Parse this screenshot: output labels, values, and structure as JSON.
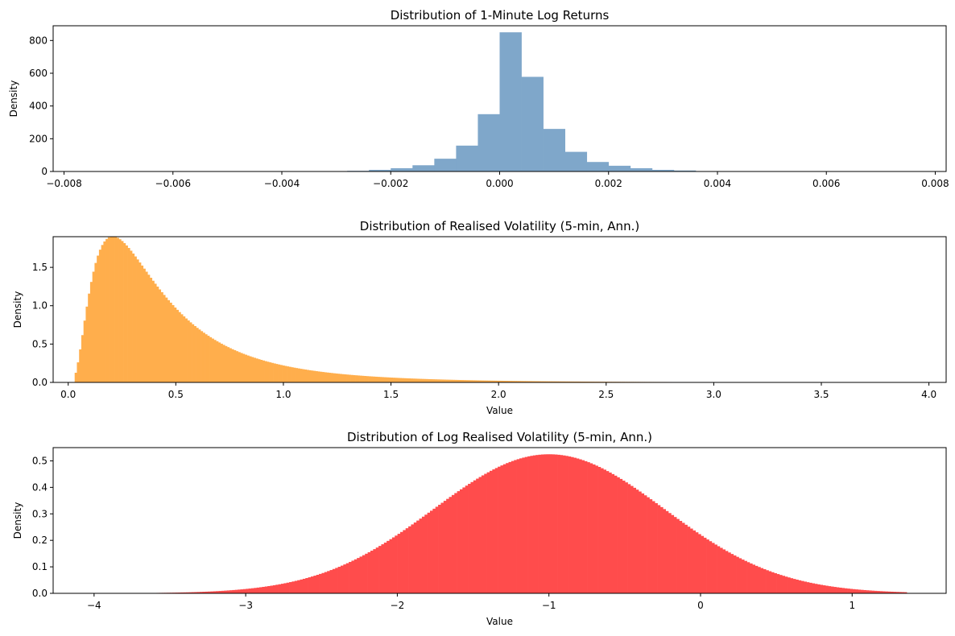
{
  "chart_data": [
    {
      "type": "bar",
      "title": "Distribution of 1-Minute Log Returns",
      "xlabel": "",
      "ylabel": "Density",
      "xlim": [
        -0.0082,
        0.0082
      ],
      "ylim": [
        0,
        890
      ],
      "color": "#7fa7ca",
      "xticks": [
        -0.008,
        -0.006,
        -0.004,
        -0.002,
        0.0,
        0.002,
        0.004,
        0.006,
        0.008
      ],
      "xtick_labels": [
        "−0.008",
        "−0.006",
        "−0.004",
        "−0.002",
        "0.000",
        "0.002",
        "0.004",
        "0.006",
        "0.008"
      ],
      "yticks": [
        0,
        200,
        400,
        600,
        800
      ],
      "ytick_labels": [
        "0",
        "200",
        "400",
        "600",
        "800"
      ],
      "bin_width": 0.0004,
      "bins": [
        [
          -0.0036,
          1
        ],
        [
          -0.0032,
          2
        ],
        [
          -0.0028,
          4
        ],
        [
          -0.0024,
          10
        ],
        [
          -0.002,
          20
        ],
        [
          -0.0016,
          38
        ],
        [
          -0.0012,
          78
        ],
        [
          -0.0008,
          158
        ],
        [
          -0.0004,
          350
        ],
        [
          0.0,
          850
        ],
        [
          0.0004,
          578
        ],
        [
          0.0008,
          260
        ],
        [
          0.0012,
          120
        ],
        [
          0.0016,
          58
        ],
        [
          0.002,
          35
        ],
        [
          0.0024,
          20
        ],
        [
          0.0028,
          10
        ],
        [
          0.0032,
          6
        ],
        [
          0.0036,
          2
        ]
      ]
    },
    {
      "type": "bar",
      "title": "Distribution of Realised Volatility (5-min, Ann.)",
      "xlabel": "Value",
      "ylabel": "Density",
      "xlim": [
        -0.07,
        4.08
      ],
      "ylim": [
        0,
        1.9
      ],
      "color": "#ffae4c",
      "xticks": [
        0,
        0.5,
        1.0,
        1.5,
        2.0,
        2.5,
        3.0,
        3.5,
        4.0
      ],
      "xtick_labels": [
        "0.0",
        "0.5",
        "1.0",
        "1.5",
        "2.0",
        "2.5",
        "3.0",
        "3.5",
        "4.0"
      ],
      "yticks": [
        0,
        0.5,
        1.0,
        1.5
      ],
      "ytick_labels": [
        "0.0",
        "0.5",
        "1.0",
        "1.5"
      ],
      "distribution": {
        "kind": "lognormal",
        "mu": -1.0,
        "sigma": 0.76
      },
      "x_range": [
        0.03,
        3.52
      ],
      "num_bins": 340
    },
    {
      "type": "bar",
      "title": "Distribution of Log Realised Volatility (5-min, Ann.)",
      "xlabel": "Value",
      "ylabel": "Density",
      "xlim": [
        -4.27,
        1.62
      ],
      "ylim": [
        0,
        0.55
      ],
      "color": "#ff4c4c",
      "xticks": [
        -4,
        -3,
        -2,
        -1,
        0,
        1
      ],
      "xtick_labels": [
        "−4",
        "−3",
        "−2",
        "−1",
        "0",
        "1"
      ],
      "yticks": [
        0,
        0.1,
        0.2,
        0.3,
        0.4,
        0.5
      ],
      "ytick_labels": [
        "0.0",
        "0.1",
        "0.2",
        "0.3",
        "0.4",
        "0.5"
      ],
      "distribution": {
        "kind": "normal",
        "mu": -1.0,
        "sigma": 0.76
      },
      "x_range": [
        -4.0,
        1.36
      ],
      "num_bins": 300
    }
  ]
}
